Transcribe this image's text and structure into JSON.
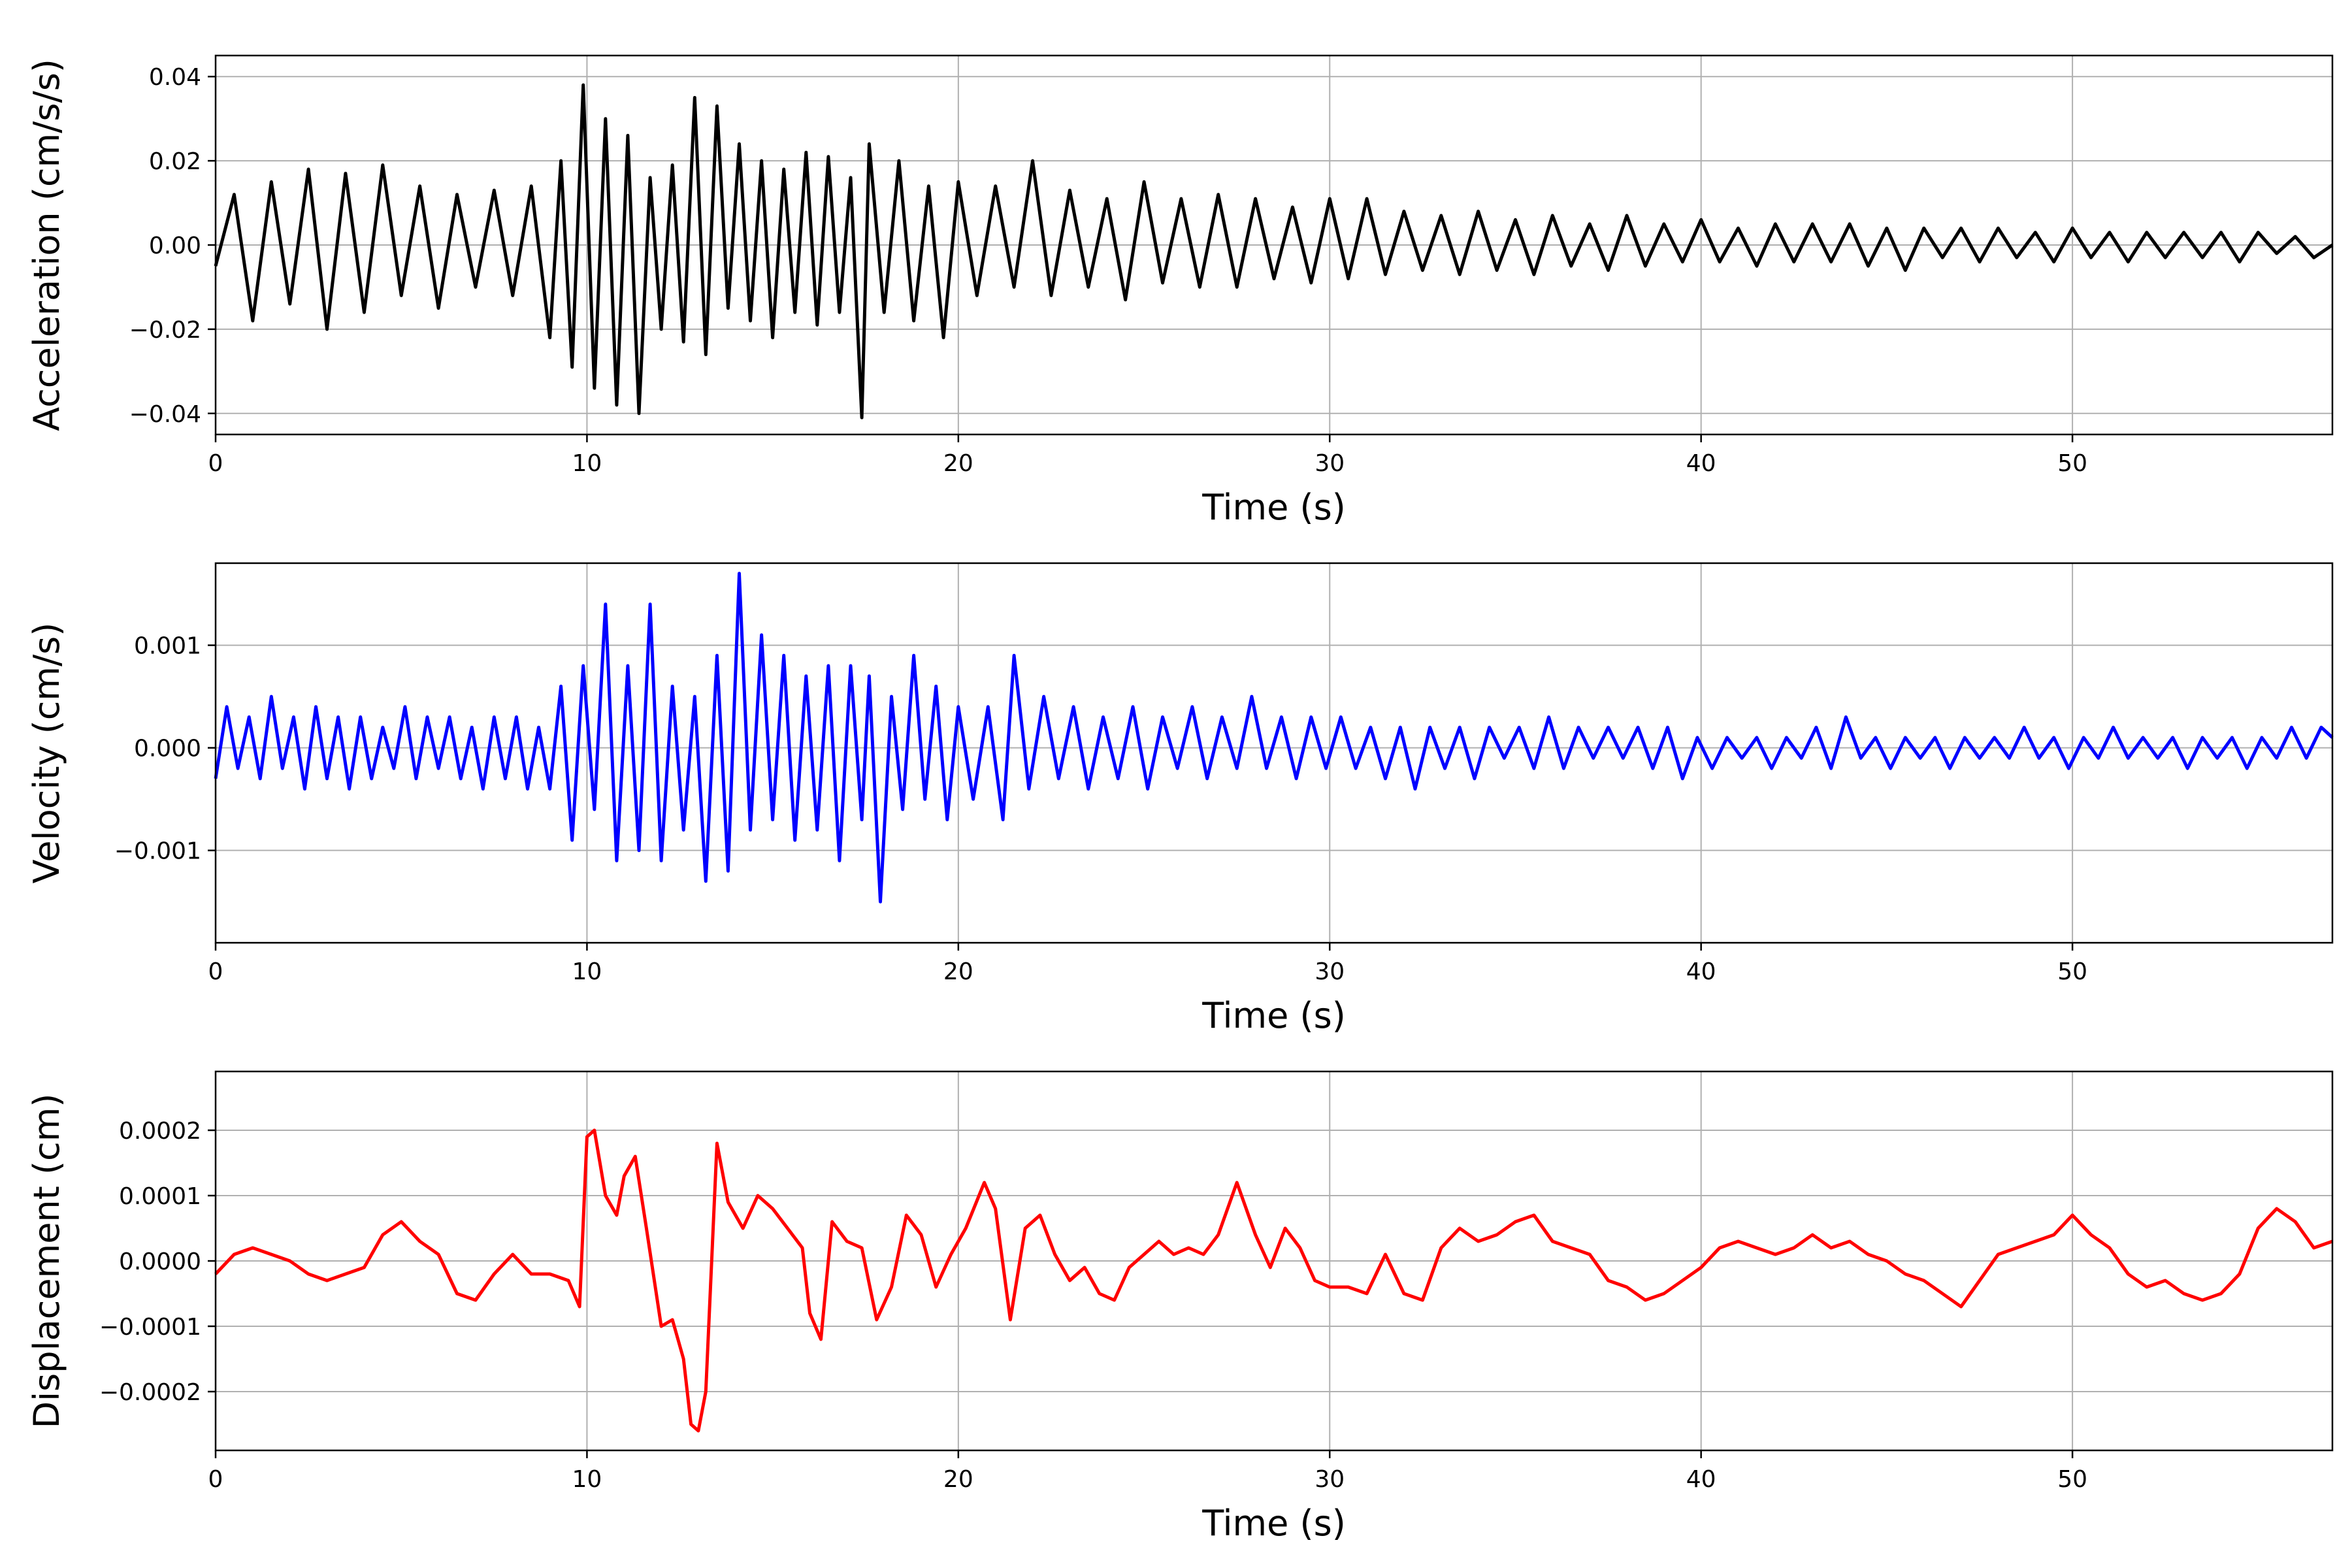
{
  "chart_data": [
    {
      "type": "line",
      "title": "",
      "xlabel": "Time (s)",
      "ylabel": "Acceleration (cm/s/s)",
      "xlim": [
        0,
        57
      ],
      "ylim": [
        -0.045,
        0.045
      ],
      "xticks": [
        0,
        10,
        20,
        30,
        40,
        50
      ],
      "xtick_labels": [
        "0",
        "10",
        "20",
        "30",
        "40",
        "50"
      ],
      "yticks": [
        -0.04,
        -0.02,
        0.0,
        0.02,
        0.04
      ],
      "ytick_labels": [
        "−0.04",
        "−0.02",
        "0.00",
        "0.02",
        "0.04"
      ],
      "grid": true,
      "legend": false,
      "color": "#000000",
      "series": [
        {
          "x": [
            0,
            0.5,
            1.0,
            1.5,
            2.0,
            2.5,
            3.0,
            3.5,
            4.0,
            4.5,
            5.0,
            5.5,
            6.0,
            6.5,
            7.0,
            7.5,
            8.0,
            8.5,
            9.0,
            9.3,
            9.6,
            9.9,
            10.2,
            10.5,
            10.8,
            11.1,
            11.4,
            11.7,
            12.0,
            12.3,
            12.6,
            12.9,
            13.2,
            13.5,
            13.8,
            14.1,
            14.4,
            14.7,
            15.0,
            15.3,
            15.6,
            15.9,
            16.2,
            16.5,
            16.8,
            17.1,
            17.4,
            17.6,
            18.0,
            18.4,
            18.8,
            19.2,
            19.6,
            20.0,
            20.5,
            21.0,
            21.5,
            22.0,
            22.5,
            23.0,
            23.5,
            24.0,
            24.5,
            25.0,
            25.5,
            26.0,
            26.5,
            27.0,
            27.5,
            28.0,
            28.5,
            29.0,
            29.5,
            30.0,
            30.5,
            31.0,
            31.5,
            32.0,
            32.5,
            33.0,
            33.5,
            34.0,
            34.5,
            35.0,
            35.5,
            36.0,
            36.5,
            37.0,
            37.5,
            38.0,
            38.5,
            39.0,
            39.5,
            40.0,
            40.5,
            41.0,
            41.5,
            42.0,
            42.5,
            43.0,
            43.5,
            44.0,
            44.5,
            45.0,
            45.5,
            46.0,
            46.5,
            47.0,
            47.5,
            48.0,
            48.5,
            49.0,
            49.5,
            50.0,
            50.5,
            51.0,
            51.5,
            52.0,
            52.5,
            53.0,
            53.5,
            54.0,
            54.5,
            55.0,
            55.5,
            56.0,
            56.5,
            57.0
          ],
          "y": [
            -0.005,
            0.012,
            -0.018,
            0.015,
            -0.014,
            0.018,
            -0.02,
            0.017,
            -0.016,
            0.019,
            -0.012,
            0.014,
            -0.015,
            0.012,
            -0.01,
            0.013,
            -0.012,
            0.014,
            -0.022,
            0.02,
            -0.029,
            0.038,
            -0.034,
            0.03,
            -0.038,
            0.026,
            -0.04,
            0.016,
            -0.02,
            0.019,
            -0.023,
            0.035,
            -0.026,
            0.033,
            -0.015,
            0.024,
            -0.018,
            0.02,
            -0.022,
            0.018,
            -0.016,
            0.022,
            -0.019,
            0.021,
            -0.016,
            0.016,
            -0.041,
            0.024,
            -0.016,
            0.02,
            -0.018,
            0.014,
            -0.022,
            0.015,
            -0.012,
            0.014,
            -0.01,
            0.02,
            -0.012,
            0.013,
            -0.01,
            0.011,
            -0.013,
            0.015,
            -0.009,
            0.011,
            -0.01,
            0.012,
            -0.01,
            0.011,
            -0.008,
            0.009,
            -0.009,
            0.011,
            -0.008,
            0.011,
            -0.007,
            0.008,
            -0.006,
            0.007,
            -0.007,
            0.008,
            -0.006,
            0.006,
            -0.007,
            0.007,
            -0.005,
            0.005,
            -0.006,
            0.007,
            -0.005,
            0.005,
            -0.004,
            0.006,
            -0.004,
            0.004,
            -0.005,
            0.005,
            -0.004,
            0.005,
            -0.004,
            0.005,
            -0.005,
            0.004,
            -0.006,
            0.004,
            -0.003,
            0.004,
            -0.004,
            0.004,
            -0.003,
            0.003,
            -0.004,
            0.004,
            -0.003,
            0.003,
            -0.004,
            0.003,
            -0.003,
            0.003,
            -0.003,
            0.003,
            -0.004,
            0.003,
            -0.002,
            0.002,
            -0.003,
            0.0
          ]
        }
      ]
    },
    {
      "type": "line",
      "title": "",
      "xlabel": "Time (s)",
      "ylabel": "Velocity (cm/s)",
      "xlim": [
        0,
        57
      ],
      "ylim": [
        -0.0019,
        0.0018
      ],
      "xticks": [
        0,
        10,
        20,
        30,
        40,
        50
      ],
      "xtick_labels": [
        "0",
        "10",
        "20",
        "30",
        "40",
        "50"
      ],
      "yticks": [
        -0.001,
        0.0,
        0.001
      ],
      "ytick_labels": [
        "−0.001",
        "0.000",
        "0.001"
      ],
      "grid": true,
      "legend": false,
      "color": "#0000ff",
      "series": [
        {
          "x": [
            0,
            0.3,
            0.6,
            0.9,
            1.2,
            1.5,
            1.8,
            2.1,
            2.4,
            2.7,
            3.0,
            3.3,
            3.6,
            3.9,
            4.2,
            4.5,
            4.8,
            5.1,
            5.4,
            5.7,
            6.0,
            6.3,
            6.6,
            6.9,
            7.2,
            7.5,
            7.8,
            8.1,
            8.4,
            8.7,
            9.0,
            9.3,
            9.6,
            9.9,
            10.2,
            10.5,
            10.8,
            11.1,
            11.4,
            11.7,
            12.0,
            12.3,
            12.6,
            12.9,
            13.2,
            13.5,
            13.8,
            14.1,
            14.4,
            14.7,
            15.0,
            15.3,
            15.6,
            15.9,
            16.2,
            16.5,
            16.8,
            17.1,
            17.4,
            17.6,
            17.9,
            18.2,
            18.5,
            18.8,
            19.1,
            19.4,
            19.7,
            20.0,
            20.4,
            20.8,
            21.2,
            21.5,
            21.9,
            22.3,
            22.7,
            23.1,
            23.5,
            23.9,
            24.3,
            24.7,
            25.1,
            25.5,
            25.9,
            26.3,
            26.7,
            27.1,
            27.5,
            27.9,
            28.3,
            28.7,
            29.1,
            29.5,
            29.9,
            30.3,
            30.7,
            31.1,
            31.5,
            31.9,
            32.3,
            32.7,
            33.1,
            33.5,
            33.9,
            34.3,
            34.7,
            35.1,
            35.5,
            35.9,
            36.3,
            36.7,
            37.1,
            37.5,
            37.9,
            38.3,
            38.7,
            39.1,
            39.5,
            39.9,
            40.3,
            40.7,
            41.1,
            41.5,
            41.9,
            42.3,
            42.7,
            43.1,
            43.5,
            43.9,
            44.3,
            44.7,
            45.1,
            45.5,
            45.9,
            46.3,
            46.7,
            47.1,
            47.5,
            47.9,
            48.3,
            48.7,
            49.1,
            49.5,
            49.9,
            50.3,
            50.7,
            51.1,
            51.5,
            51.9,
            52.3,
            52.7,
            53.1,
            53.5,
            53.9,
            54.3,
            54.7,
            55.1,
            55.5,
            55.9,
            56.3,
            56.7,
            57.0
          ],
          "y": [
            -0.0003,
            0.0004,
            -0.0002,
            0.0003,
            -0.0003,
            0.0005,
            -0.0002,
            0.0003,
            -0.0004,
            0.0004,
            -0.0003,
            0.0003,
            -0.0004,
            0.0003,
            -0.0003,
            0.0002,
            -0.0002,
            0.0004,
            -0.0003,
            0.0003,
            -0.0002,
            0.0003,
            -0.0003,
            0.0002,
            -0.0004,
            0.0003,
            -0.0003,
            0.0003,
            -0.0004,
            0.0002,
            -0.0004,
            0.0006,
            -0.0009,
            0.0008,
            -0.0006,
            0.0014,
            -0.0011,
            0.0008,
            -0.001,
            0.0014,
            -0.0011,
            0.0006,
            -0.0008,
            0.0005,
            -0.0013,
            0.0009,
            -0.0012,
            0.0017,
            -0.0008,
            0.0011,
            -0.0007,
            0.0009,
            -0.0009,
            0.0007,
            -0.0008,
            0.0008,
            -0.0011,
            0.0008,
            -0.0007,
            0.0007,
            -0.0015,
            0.0005,
            -0.0006,
            0.0009,
            -0.0005,
            0.0006,
            -0.0007,
            0.0004,
            -0.0005,
            0.0004,
            -0.0007,
            0.0009,
            -0.0004,
            0.0005,
            -0.0003,
            0.0004,
            -0.0004,
            0.0003,
            -0.0003,
            0.0004,
            -0.0004,
            0.0003,
            -0.0002,
            0.0004,
            -0.0003,
            0.0003,
            -0.0002,
            0.0005,
            -0.0002,
            0.0003,
            -0.0003,
            0.0003,
            -0.0002,
            0.0003,
            -0.0002,
            0.0002,
            -0.0003,
            0.0002,
            -0.0004,
            0.0002,
            -0.0002,
            0.0002,
            -0.0003,
            0.0002,
            -0.0001,
            0.0002,
            -0.0002,
            0.0003,
            -0.0002,
            0.0002,
            -0.0001,
            0.0002,
            -0.0001,
            0.0002,
            -0.0002,
            0.0002,
            -0.0003,
            0.0001,
            -0.0002,
            0.0001,
            -0.0001,
            0.0001,
            -0.0002,
            0.0001,
            -0.0001,
            0.0002,
            -0.0002,
            0.0003,
            -0.0001,
            0.0001,
            -0.0002,
            0.0001,
            -0.0001,
            0.0001,
            -0.0002,
            0.0001,
            -0.0001,
            0.0001,
            -0.0001,
            0.0002,
            -0.0001,
            0.0001,
            -0.0002,
            0.0001,
            -0.0001,
            0.0002,
            -0.0001,
            0.0001,
            -0.0001,
            0.0001,
            -0.0002,
            0.0001,
            -0.0001,
            0.0001,
            -0.0002,
            0.0001,
            -0.0001,
            0.0002,
            -0.0001,
            0.0002,
            0.0001
          ]
        }
      ]
    },
    {
      "type": "line",
      "title": "",
      "xlabel": "Time (s)",
      "ylabel": "Displacement (cm)",
      "xlim": [
        0,
        57
      ],
      "ylim": [
        -0.00029,
        0.00029
      ],
      "xticks": [
        0,
        10,
        20,
        30,
        40,
        50
      ],
      "xtick_labels": [
        "0",
        "10",
        "20",
        "30",
        "40",
        "50"
      ],
      "yticks": [
        -0.0002,
        -0.0001,
        0.0,
        0.0001,
        0.0002
      ],
      "ytick_labels": [
        "−0.0002",
        "−0.0001",
        "0.0000",
        "0.0001",
        "0.0002"
      ],
      "grid": true,
      "legend": false,
      "color": "#ff0000",
      "series": [
        {
          "x": [
            0,
            0.5,
            1.0,
            1.5,
            2.0,
            2.5,
            3.0,
            3.5,
            4.0,
            4.5,
            5.0,
            5.5,
            6.0,
            6.5,
            7.0,
            7.5,
            8.0,
            8.5,
            9.0,
            9.5,
            9.8,
            10.0,
            10.2,
            10.5,
            10.8,
            11.0,
            11.3,
            11.6,
            12.0,
            12.3,
            12.6,
            12.8,
            13.0,
            13.2,
            13.5,
            13.8,
            14.2,
            14.6,
            15.0,
            15.4,
            15.8,
            16.0,
            16.3,
            16.6,
            17.0,
            17.4,
            17.8,
            18.2,
            18.6,
            19.0,
            19.4,
            19.8,
            20.2,
            20.7,
            21.0,
            21.4,
            21.8,
            22.2,
            22.6,
            23.0,
            23.4,
            23.8,
            24.2,
            24.6,
            25.0,
            25.4,
            25.8,
            26.2,
            26.6,
            27.0,
            27.5,
            28.0,
            28.4,
            28.8,
            29.2,
            29.6,
            30.0,
            30.5,
            31.0,
            31.5,
            32.0,
            32.5,
            33.0,
            33.5,
            34.0,
            34.5,
            35.0,
            35.5,
            36.0,
            36.5,
            37.0,
            37.5,
            38.0,
            38.5,
            39.0,
            39.5,
            40.0,
            40.5,
            41.0,
            41.5,
            42.0,
            42.5,
            43.0,
            43.5,
            44.0,
            44.5,
            45.0,
            45.5,
            46.0,
            46.5,
            47.0,
            47.5,
            48.0,
            48.5,
            49.0,
            49.5,
            50.0,
            50.5,
            51.0,
            51.5,
            52.0,
            52.5,
            53.0,
            53.5,
            54.0,
            54.5,
            55.0,
            55.5,
            56.0,
            56.5,
            57.0
          ],
          "y": [
            -2e-05,
            1e-05,
            2e-05,
            1e-05,
            0.0,
            -2e-05,
            -3e-05,
            -2e-05,
            -1e-05,
            4e-05,
            6e-05,
            3e-05,
            1e-05,
            -5e-05,
            -6e-05,
            -2e-05,
            1e-05,
            -2e-05,
            -2e-05,
            -3e-05,
            -7e-05,
            0.00019,
            0.0002,
            0.0001,
            7e-05,
            0.00013,
            0.00016,
            5e-05,
            -0.0001,
            -9e-05,
            -0.00015,
            -0.00025,
            -0.00026,
            -0.0002,
            0.00018,
            9e-05,
            5e-05,
            0.0001,
            8e-05,
            5e-05,
            2e-05,
            -8e-05,
            -0.00012,
            6e-05,
            3e-05,
            2e-05,
            -9e-05,
            -4e-05,
            7e-05,
            4e-05,
            -4e-05,
            1e-05,
            5e-05,
            0.00012,
            8e-05,
            -9e-05,
            5e-05,
            7e-05,
            1e-05,
            -3e-05,
            -1e-05,
            -5e-05,
            -6e-05,
            -1e-05,
            1e-05,
            3e-05,
            1e-05,
            2e-05,
            1e-05,
            4e-05,
            0.00012,
            4e-05,
            -1e-05,
            5e-05,
            2e-05,
            -3e-05,
            -4e-05,
            -4e-05,
            -5e-05,
            1e-05,
            -5e-05,
            -6e-05,
            2e-05,
            5e-05,
            3e-05,
            4e-05,
            6e-05,
            7e-05,
            3e-05,
            2e-05,
            1e-05,
            -3e-05,
            -4e-05,
            -6e-05,
            -5e-05,
            -3e-05,
            -1e-05,
            2e-05,
            3e-05,
            2e-05,
            1e-05,
            2e-05,
            4e-05,
            2e-05,
            3e-05,
            1e-05,
            0.0,
            -2e-05,
            -3e-05,
            -5e-05,
            -7e-05,
            -3e-05,
            1e-05,
            2e-05,
            3e-05,
            4e-05,
            7e-05,
            4e-05,
            2e-05,
            -2e-05,
            -4e-05,
            -3e-05,
            -5e-05,
            -6e-05,
            -5e-05,
            -2e-05,
            5e-05,
            8e-05,
            6e-05,
            2e-05,
            3e-05
          ]
        }
      ]
    }
  ]
}
